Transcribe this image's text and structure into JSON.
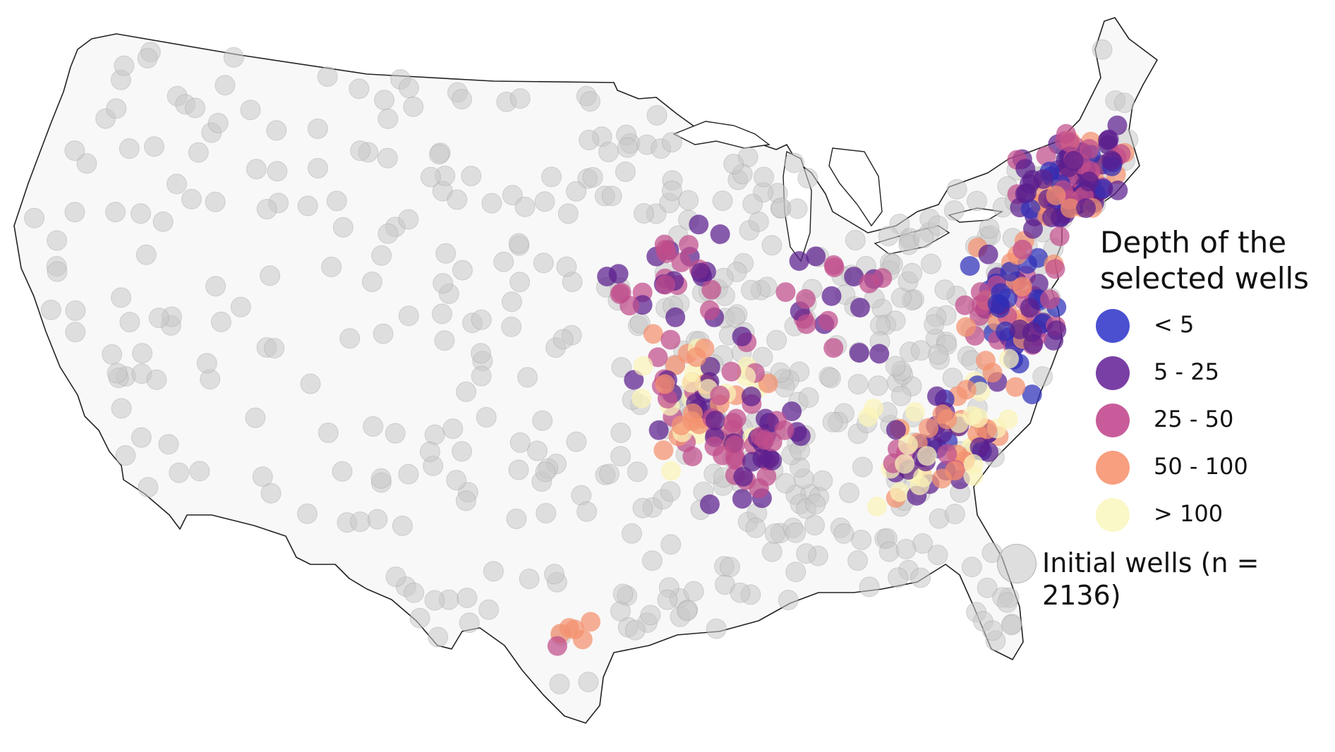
{
  "legend": {
    "title_line1": "Depth of the",
    "title_line2": "selected wells",
    "classes": [
      {
        "label": "< 5",
        "color": "#4a50d0"
      },
      {
        "label": "5 - 25",
        "color": "#7a3fa5"
      },
      {
        "label": "25 - 50",
        "color": "#c85c9a"
      },
      {
        "label": "50 - 100",
        "color": "#f79f7f"
      },
      {
        "label": "> 100",
        "color": "#fbf8c8"
      }
    ],
    "initial_label": "Initial wells (n = 2136)",
    "initial_color": "#c8c8c8"
  },
  "map_colors": {
    "land": "#f8f8f8",
    "outline": "#222222",
    "initial_wells": "#c8c8c8",
    "depth_lt5": "#2e2fb8",
    "depth_5_25": "#5b1f8e",
    "depth_25_50": "#c04d8c",
    "depth_50_100": "#f4916f",
    "depth_gt100": "#fbf4b8"
  }
}
